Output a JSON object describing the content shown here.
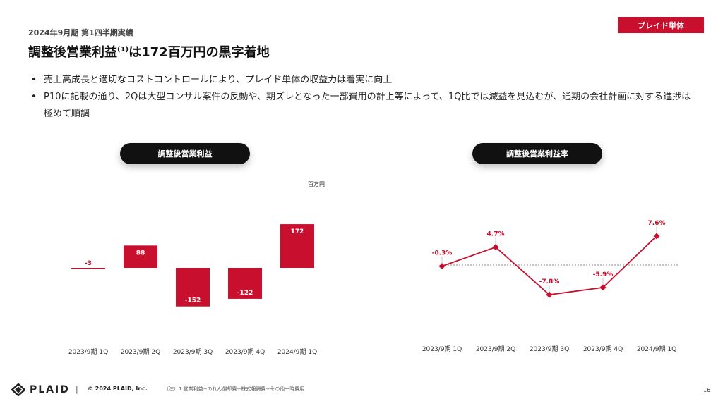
{
  "header": {
    "subtitle": "2024年9月期 第1四半期実績",
    "title_main": "調整後営業利益",
    "title_sup": "(1)",
    "title_rest": "は172百万円の黒字着地",
    "tag": "プレイド単体"
  },
  "bullets": [
    "売上高成長と適切なコストコントロールにより、プレイド単体の収益力は着実に向上",
    "P10に記載の通り、2Qは大型コンサル案件の反動や、期ズレとなった一部費用の計上等によって、1Q比では減益を見込むが、通期の会社計画に対する進捗は極めて順調"
  ],
  "left_panel": {
    "pill": "調整後営業利益",
    "unit": "百万円"
  },
  "right_panel": {
    "pill": "調整後営業利益率"
  },
  "chart_data": [
    {
      "type": "bar",
      "title": "調整後営業利益",
      "unit": "百万円",
      "categories": [
        "2023/9期 1Q",
        "2023/9期 2Q",
        "2023/9期 3Q",
        "2023/9期 4Q",
        "2024/9期 1Q"
      ],
      "values": [
        -3,
        88,
        -152,
        -122,
        172
      ],
      "value_labels": [
        "-3",
        "88",
        "-152",
        "-122",
        "172"
      ],
      "color": "#c8102e"
    },
    {
      "type": "line",
      "title": "調整後営業利益率",
      "categories": [
        "2023/9期 1Q",
        "2023/9期 2Q",
        "2023/9期 3Q",
        "2023/9期 4Q",
        "2024/9期 1Q"
      ],
      "values": [
        -0.3,
        4.7,
        -7.8,
        -5.9,
        7.6
      ],
      "value_labels": [
        "-0.3%",
        "4.7%",
        "-7.8%",
        "-5.9%",
        "7.6%"
      ],
      "baseline": 0,
      "color": "#c8102e"
    }
  ],
  "footer": {
    "logo": "PLAID",
    "separator": "|",
    "copyright": "© 2024 PLAID, Inc.",
    "note": "（注）1.営業利益+のれん償却費+株式報酬費+その他一時費用",
    "page": "16"
  }
}
